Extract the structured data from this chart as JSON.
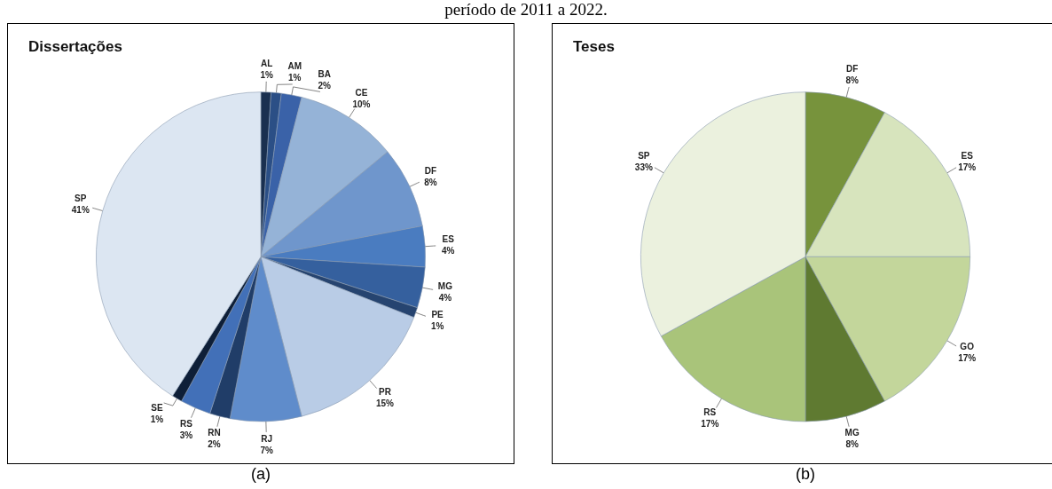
{
  "chart_data": [
    {
      "type": "pie",
      "title": "Dissertações",
      "categories": [
        "AL",
        "AM",
        "BA",
        "CE",
        "DF",
        "ES",
        "MG",
        "PE",
        "PR",
        "RJ",
        "RN",
        "RS",
        "SE",
        "SP"
      ],
      "values": [
        1,
        1,
        2,
        10,
        8,
        4,
        4,
        1,
        15,
        7,
        2,
        3,
        1,
        41
      ],
      "value_labels": [
        "1%",
        "1%",
        "2%",
        "10%",
        "8%",
        "4%",
        "4%",
        "1%",
        "15%",
        "7%",
        "2%",
        "3%",
        "1%",
        "41%"
      ],
      "colors": [
        "#1a3050",
        "#2b4f86",
        "#3a62a8",
        "#95b3d7",
        "#6f96cc",
        "#4a7cc0",
        "#35609e",
        "#264470",
        "#b9cce6",
        "#5f8ccb",
        "#203d68",
        "#4270b8",
        "#0e1f38",
        "#dce6f2"
      ],
      "annotations": [
        "período de 2011 a 2022.",
        "(a)"
      ],
      "legend": false
    },
    {
      "type": "pie",
      "title": "Teses",
      "categories": [
        "DF",
        "ES",
        "GO",
        "MG",
        "RS",
        "SP"
      ],
      "values": [
        8,
        17,
        17,
        8,
        17,
        33
      ],
      "value_labels": [
        "8%",
        "17%",
        "17%",
        "8%",
        "17%",
        "33%"
      ],
      "colors": [
        "#77933c",
        "#d7e4bd",
        "#c3d69b",
        "#5f7a31",
        "#a9c47a",
        "#ebf1de"
      ],
      "annotations": [
        "(b)"
      ],
      "legend": false
    }
  ]
}
